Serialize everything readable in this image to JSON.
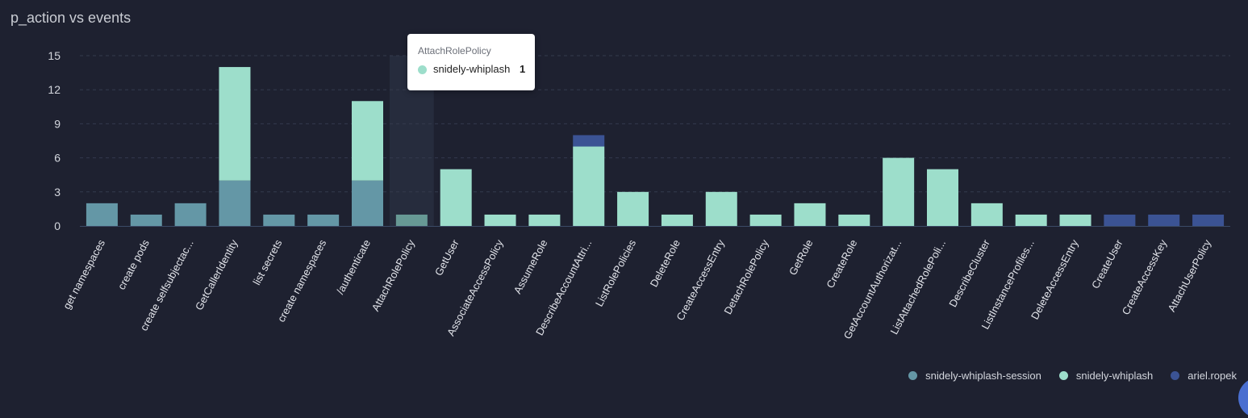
{
  "title": "p_action vs events",
  "colors": {
    "background": "#1e2130",
    "grid": "#343a4d",
    "hover_band": "#262c3d"
  },
  "chart_data": {
    "type": "bar",
    "stacked": true,
    "title": "p_action vs events",
    "xlabel": "",
    "ylabel": "",
    "ylim": [
      0,
      15
    ],
    "yticks": [
      0,
      3,
      6,
      9,
      12,
      15
    ],
    "grid": true,
    "legend_position": "bottom-right",
    "categories": [
      "get namespaces",
      "create pods",
      "create selfsubjectac...",
      "GetCallerIdentity",
      "list secrets",
      "create namespaces",
      "/authenticate",
      "AttachRolePolicy",
      "GetUser",
      "AssociateAccessPolicy",
      "AssumeRole",
      "DescribeAccountAttri...",
      "ListRolePolicies",
      "DeleteRole",
      "CreateAccessEntry",
      "DetachRolePolicy",
      "GetRole",
      "CreateRole",
      "GetAccountAuthorizat...",
      "ListAttachedRolePoli...",
      "DescribeCluster",
      "ListInstanceProfiles...",
      "DeleteAccessEntry",
      "CreateUser",
      "CreateAccessKey",
      "AttachUserPolicy"
    ],
    "series": [
      {
        "name": "snidely-whiplash-session",
        "color": "#6497a6",
        "values": [
          2,
          1,
          2,
          4,
          1,
          1,
          4,
          0,
          0,
          0,
          0,
          0,
          0,
          0,
          0,
          0,
          0,
          0,
          0,
          0,
          0,
          0,
          0,
          0,
          0,
          0
        ]
      },
      {
        "name": "snidely-whiplash",
        "color": "#9ddecb",
        "values": [
          0,
          0,
          0,
          10,
          0,
          0,
          7,
          1,
          5,
          1,
          1,
          7,
          3,
          1,
          3,
          1,
          2,
          1,
          6,
          5,
          2,
          1,
          1,
          0,
          0,
          0
        ]
      },
      {
        "name": "ariel.ropek",
        "color": "#3b5394",
        "values": [
          0,
          0,
          0,
          0,
          0,
          0,
          0,
          0,
          0,
          0,
          0,
          1,
          0,
          0,
          0,
          0,
          0,
          0,
          0,
          0,
          0,
          0,
          0,
          1,
          1,
          1
        ]
      }
    ],
    "hovered_category": "AttachRolePolicy"
  },
  "tooltip": {
    "title": "AttachRolePolicy",
    "series": "snidely-whiplash",
    "value": "1",
    "color": "#9ddecb"
  }
}
